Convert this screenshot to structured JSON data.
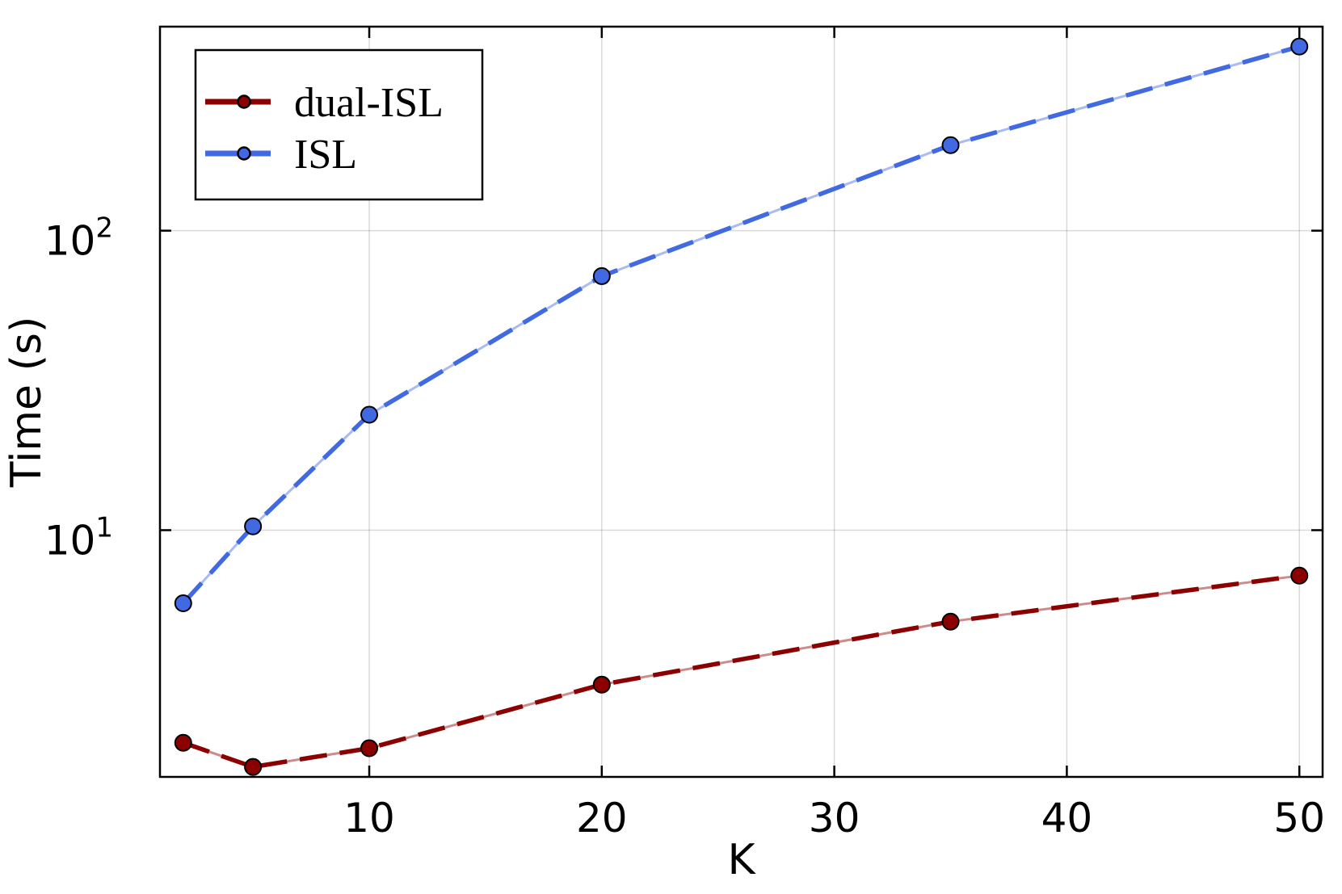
{
  "chart_data": {
    "type": "line",
    "xlabel": "K",
    "ylabel": "Time (s)",
    "yscale": "log",
    "xlim": [
      1,
      51
    ],
    "ylim": [
      1.5,
      480
    ],
    "grid": true,
    "legend": {
      "position": "top-left"
    },
    "x_ticks": [
      {
        "value": 10,
        "label": "10"
      },
      {
        "value": 20,
        "label": "20"
      },
      {
        "value": 30,
        "label": "30"
      },
      {
        "value": 40,
        "label": "40"
      },
      {
        "value": 50,
        "label": "50"
      }
    ],
    "y_ticks": [
      {
        "value": 10,
        "base": "10",
        "exp": "1"
      },
      {
        "value": 100,
        "base": "10",
        "exp": "2"
      }
    ],
    "x": [
      2,
      5,
      10,
      20,
      35,
      50
    ],
    "series": [
      {
        "name": "dual-ISL",
        "color": "#8b0000",
        "values": [
          1.95,
          1.62,
          1.87,
          3.05,
          4.95,
          7.05
        ]
      },
      {
        "name": "ISL",
        "color": "#4169e1",
        "values": [
          5.7,
          10.3,
          24.3,
          70.5,
          193,
          412
        ]
      }
    ]
  }
}
